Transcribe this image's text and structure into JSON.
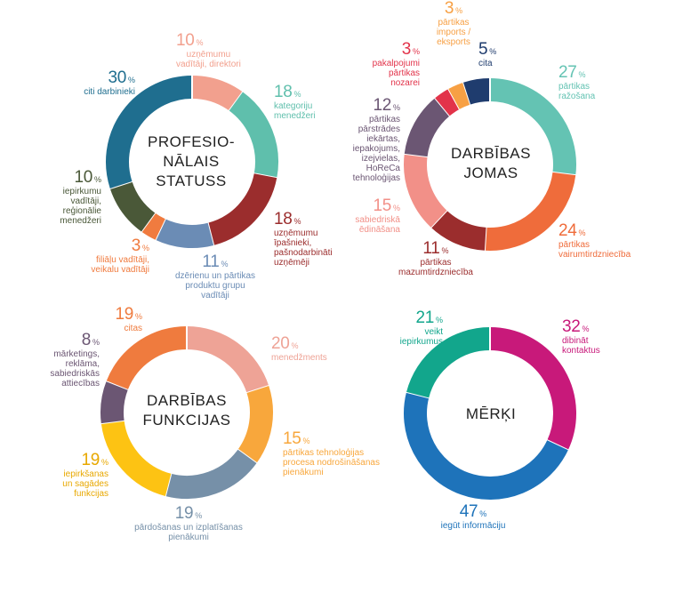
{
  "chart_data": [
    {
      "type": "pie",
      "title": "PROFESIO-\nNĀLAIS\nSTATUSS",
      "slices": [
        {
          "value": 10,
          "pct": "%",
          "label": "uzņēmumu\nvadītāji, direktori",
          "color": "#F2A08E"
        },
        {
          "value": 18,
          "pct": "%",
          "label": "kategoriju\nmenedžeri",
          "color": "#5FBFAC"
        },
        {
          "value": 18,
          "pct": "%",
          "label": "uzņēmumu\nīpašnieki,\npašnodarbināti\nuzņēmēji",
          "color": "#9B2D2D"
        },
        {
          "value": 11,
          "pct": "%",
          "label": "dzērienu un pārtikas\nproduktu grupu\nvadītāji",
          "color": "#6B8CB5"
        },
        {
          "value": 3,
          "pct": "%",
          "label": "filiāļu vadītāji,\nveikalu vadītāji",
          "color": "#F07B3F"
        },
        {
          "value": 10,
          "pct": "%",
          "label": "iepirkumu\nvadītāji,\nreģionālie\nmenedžeri",
          "color": "#4A5838"
        },
        {
          "value": 30,
          "pct": "%",
          "label": "citi darbinieki",
          "color": "#1F6E8F"
        }
      ]
    },
    {
      "type": "pie",
      "title": "DARBĪBAS\nJOMAS",
      "slices": [
        {
          "value": 27,
          "pct": "%",
          "label": "pārtikas\nražošana",
          "color": "#64C3B3"
        },
        {
          "value": 24,
          "pct": "%",
          "label": "pārtikas\nvairumtirdzniecība",
          "color": "#EF6C3B"
        },
        {
          "value": 11,
          "pct": "%",
          "label": "pārtikas\nmazumtirdzniecība",
          "color": "#9B2D2D"
        },
        {
          "value": 15,
          "pct": "%",
          "label": "sabiedriskā\nēdināšana",
          "color": "#F29088"
        },
        {
          "value": 12,
          "pct": "%",
          "label": "pārtikas\npārstrādes\niekārtas,\niepakojums,\nizejvielas,\nHoReCa\ntehnoloģijas",
          "color": "#6B5673"
        },
        {
          "value": 3,
          "pct": "%",
          "label": "pakalpojumi\npārtikas\nnozarei",
          "color": "#E2334A"
        },
        {
          "value": 3,
          "pct": "%",
          "label": "pārtikas\nimports /\neksports",
          "color": "#F7A044"
        },
        {
          "value": 5,
          "pct": "%",
          "label": "cita",
          "color": "#1F3C6E"
        }
      ]
    },
    {
      "type": "pie",
      "title": "DARBĪBAS\nFUNKCIJAS",
      "slices": [
        {
          "value": 20,
          "pct": "%",
          "label": "menedžments",
          "color": "#EEA396"
        },
        {
          "value": 15,
          "pct": "%",
          "label": "pārtikas tehnoloģijas\nprocesa nodrošināšanas\npienākumi",
          "color": "#F8A73C"
        },
        {
          "value": 19,
          "pct": "%",
          "label": "pārdošanas un izplatīšanas\npienākumi",
          "color": "#7690A8"
        },
        {
          "value": 19,
          "pct": "%",
          "label": "iepirkšanas\nun sagādes\nfunkcijas",
          "color": "#FDC313"
        },
        {
          "value": 8,
          "pct": "%",
          "label": "mārketings,\nreklāma,\nsabiedriskās\nattiecības",
          "color": "#6B5673"
        },
        {
          "value": 19,
          "pct": "%",
          "label": "citas",
          "color": "#EF7B3E"
        }
      ]
    },
    {
      "type": "pie",
      "title": "MĒRĶI",
      "slices": [
        {
          "value": 32,
          "pct": "%",
          "label": "dibināt\nkontaktus",
          "color": "#C8197A"
        },
        {
          "value": 47,
          "pct": "%",
          "label": "iegūt informāciju",
          "color": "#1E73BA"
        },
        {
          "value": 21,
          "pct": "%",
          "label": "veikt\niepirkumus",
          "color": "#12A68C"
        }
      ]
    }
  ]
}
